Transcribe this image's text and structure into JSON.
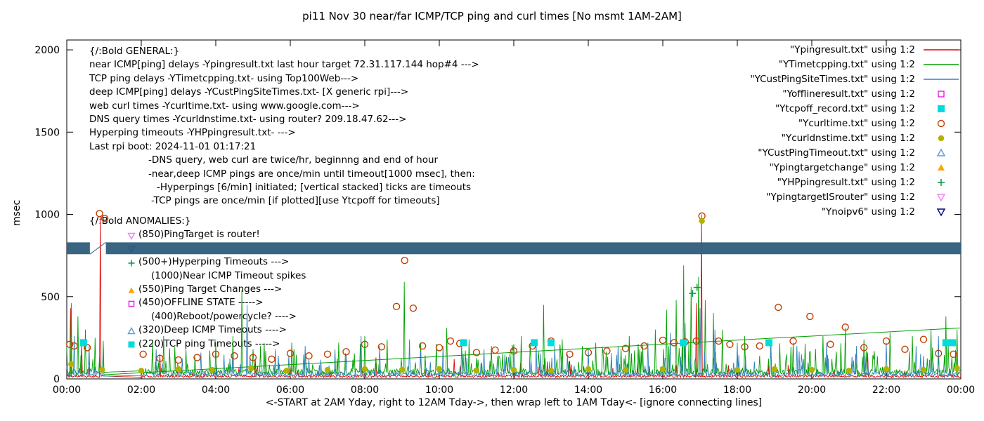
{
  "chart_data": {
    "type": "line",
    "title": "pi11 Nov 30  near/far ICMP/TCP ping and curl times [No msmt 1AM-2AM]",
    "xlabel": "<-START at 2AM Yday, right to 12AM Tday->, then wrap left to 1AM Tday<- [ignore connecting lines]",
    "ylabel": "msec",
    "x_range": [
      0,
      24
    ],
    "ylim": [
      0,
      2000
    ],
    "grid": false,
    "legend_position": "top-right",
    "x_tick_pos": [
      0,
      2,
      4,
      6,
      8,
      10,
      12,
      14,
      16,
      18,
      20,
      22,
      24
    ],
    "x_tick_labels": [
      "00:00",
      "02:00",
      "04:00",
      "06:00",
      "08:00",
      "10:00",
      "12:00",
      "14:00",
      "16:00",
      "18:00",
      "20:00",
      "22:00",
      "00:00"
    ],
    "y_tick_pos": [
      0,
      500,
      1000,
      1500,
      2000
    ],
    "y_tick_labels": [
      "0",
      "500",
      "1000",
      "1500",
      "2000"
    ],
    "no_measurement_gap_hours": [
      1,
      2
    ],
    "noise_series": [
      {
        "name": "Ypingresult.txt",
        "color": "#dd0000",
        "seed": 11,
        "base": 16,
        "amp": 90,
        "spike_prob": 0.05,
        "spikes": [
          [
            0.1,
            430
          ],
          [
            0.4,
            210
          ],
          [
            0.9,
            990
          ],
          [
            2.5,
            150
          ],
          [
            5.05,
            120
          ],
          [
            8.3,
            130
          ],
          [
            10.4,
            120
          ],
          [
            13.5,
            110
          ],
          [
            16.9,
            460
          ],
          [
            17.04,
            1000
          ],
          [
            21.5,
            160
          ]
        ]
      },
      {
        "name": "YTimetcpping.txt",
        "color": "#00a000",
        "seed": 7,
        "base": 40,
        "amp": 180,
        "spike_prob": 0.18,
        "spikes": [
          [
            0.12,
            460
          ],
          [
            0.3,
            380
          ],
          [
            0.5,
            300
          ],
          [
            0.75,
            250
          ],
          [
            2.3,
            220
          ],
          [
            2.6,
            260
          ],
          [
            3.2,
            180
          ],
          [
            4.0,
            220
          ],
          [
            4.45,
            260
          ],
          [
            4.7,
            540
          ],
          [
            5.2,
            200
          ],
          [
            6.1,
            180
          ],
          [
            7.3,
            220
          ],
          [
            8.0,
            260
          ],
          [
            8.6,
            240
          ],
          [
            9.05,
            590
          ],
          [
            9.5,
            220
          ],
          [
            10.2,
            310
          ],
          [
            10.8,
            240
          ],
          [
            11.4,
            200
          ],
          [
            12.2,
            260
          ],
          [
            12.8,
            450
          ],
          [
            13.3,
            240
          ],
          [
            14.2,
            220
          ],
          [
            15.1,
            260
          ],
          [
            15.8,
            300
          ],
          [
            16.1,
            420
          ],
          [
            16.35,
            480
          ],
          [
            16.55,
            690
          ],
          [
            16.75,
            560
          ],
          [
            16.95,
            620
          ],
          [
            17.15,
            480
          ],
          [
            17.35,
            400
          ],
          [
            17.6,
            300
          ],
          [
            18.2,
            260
          ],
          [
            18.9,
            240
          ],
          [
            19.5,
            220
          ],
          [
            20.3,
            260
          ],
          [
            20.9,
            310
          ],
          [
            21.4,
            240
          ],
          [
            22.1,
            280
          ],
          [
            22.7,
            260
          ],
          [
            23.2,
            300
          ],
          [
            23.6,
            380
          ],
          [
            23.9,
            300
          ]
        ]
      },
      {
        "name": "YCustPingSiteTimes.txt",
        "color": "#3182bd",
        "seed": 3,
        "base": 28,
        "amp": 140,
        "spike_prob": 0.12,
        "spikes": [
          [
            0.2,
            260
          ],
          [
            0.6,
            200
          ],
          [
            2.4,
            180
          ],
          [
            3.6,
            160
          ],
          [
            4.85,
            450
          ],
          [
            5.6,
            180
          ],
          [
            6.4,
            200
          ],
          [
            7.2,
            180
          ],
          [
            7.9,
            260
          ],
          [
            8.4,
            200
          ],
          [
            9.2,
            240
          ],
          [
            10.1,
            200
          ],
          [
            10.6,
            230
          ],
          [
            11.2,
            180
          ],
          [
            12.0,
            200
          ],
          [
            12.6,
            220
          ],
          [
            13.1,
            200
          ],
          [
            14.0,
            180
          ],
          [
            14.8,
            200
          ],
          [
            15.6,
            220
          ],
          [
            16.2,
            280
          ],
          [
            16.6,
            340
          ],
          [
            17.0,
            430
          ],
          [
            17.4,
            300
          ],
          [
            18.0,
            220
          ],
          [
            18.9,
            230
          ],
          [
            19.6,
            200
          ],
          [
            20.4,
            220
          ],
          [
            21.2,
            200
          ],
          [
            22.0,
            220
          ],
          [
            22.8,
            200
          ],
          [
            23.4,
            260
          ]
        ]
      }
    ],
    "wrap_line": {
      "name": "wrap-connecting-line",
      "color": "#00a000",
      "from": [
        1.0,
        25
      ],
      "to": [
        24,
        310
      ]
    },
    "band": {
      "name": "Ynoipv6 dense timeout band",
      "color": "#2e5d7c",
      "y": [
        758,
        830
      ],
      "segments": [
        [
          0,
          0.62
        ],
        [
          1.05,
          24
        ]
      ],
      "slash": [
        [
          0.62,
          758
        ],
        [
          1.05,
          830
        ]
      ]
    },
    "point_series": [
      {
        "name": "Ycurltime.txt",
        "marker": "circle_open",
        "color": "#c04000",
        "points": [
          [
            0.08,
            210
          ],
          [
            0.2,
            200
          ],
          [
            0.55,
            190
          ],
          [
            0.88,
            1005
          ],
          [
            1.02,
            975
          ],
          [
            2.05,
            150
          ],
          [
            2.5,
            125
          ],
          [
            3.0,
            115
          ],
          [
            3.5,
            130
          ],
          [
            4.0,
            150
          ],
          [
            4.5,
            140
          ],
          [
            5.0,
            130
          ],
          [
            5.5,
            120
          ],
          [
            6.0,
            155
          ],
          [
            6.5,
            140
          ],
          [
            7.0,
            150
          ],
          [
            7.5,
            165
          ],
          [
            8.0,
            210
          ],
          [
            8.45,
            195
          ],
          [
            8.85,
            440
          ],
          [
            9.07,
            720
          ],
          [
            9.3,
            430
          ],
          [
            9.55,
            200
          ],
          [
            10.0,
            190
          ],
          [
            10.3,
            230
          ],
          [
            10.55,
            215
          ],
          [
            11.0,
            160
          ],
          [
            11.5,
            175
          ],
          [
            12.0,
            170
          ],
          [
            12.5,
            200
          ],
          [
            13.0,
            230
          ],
          [
            13.5,
            150
          ],
          [
            14.0,
            160
          ],
          [
            14.5,
            170
          ],
          [
            15.0,
            185
          ],
          [
            15.5,
            200
          ],
          [
            16.0,
            235
          ],
          [
            16.3,
            220
          ],
          [
            16.6,
            225
          ],
          [
            16.9,
            230
          ],
          [
            17.05,
            990
          ],
          [
            17.5,
            230
          ],
          [
            17.8,
            210
          ],
          [
            18.2,
            195
          ],
          [
            18.6,
            200
          ],
          [
            19.1,
            435
          ],
          [
            19.5,
            230
          ],
          [
            19.95,
            380
          ],
          [
            20.5,
            210
          ],
          [
            20.9,
            315
          ],
          [
            21.4,
            190
          ],
          [
            22.0,
            230
          ],
          [
            22.5,
            180
          ],
          [
            23.0,
            240
          ],
          [
            23.4,
            155
          ],
          [
            23.8,
            150
          ]
        ]
      },
      {
        "name": "Ycurldnstime.txt",
        "marker": "circle_fill",
        "color": "#b2b200",
        "points": [
          [
            0.12,
            90
          ],
          [
            0.95,
            55
          ],
          [
            2.0,
            50
          ],
          [
            3.0,
            60
          ],
          [
            3.9,
            55
          ],
          [
            4.95,
            65
          ],
          [
            5.9,
            50
          ],
          [
            7.0,
            55
          ],
          [
            8.0,
            60
          ],
          [
            9.0,
            55
          ],
          [
            10.0,
            60
          ],
          [
            11.0,
            50
          ],
          [
            12.0,
            55
          ],
          [
            13.0,
            50
          ],
          [
            14.0,
            60
          ],
          [
            15.0,
            55
          ],
          [
            16.0,
            60
          ],
          [
            17.05,
            960
          ],
          [
            18.0,
            55
          ],
          [
            19.0,
            60
          ],
          [
            20.0,
            55
          ],
          [
            21.0,
            50
          ],
          [
            22.0,
            60
          ],
          [
            23.0,
            55
          ],
          [
            23.9,
            65
          ]
        ]
      },
      {
        "name": "Ytcpoff_record.txt",
        "marker": "square_fill",
        "color": "#00dcdc",
        "points": [
          [
            0.45,
            220
          ],
          [
            10.65,
            220
          ],
          [
            12.55,
            220
          ],
          [
            13.0,
            220
          ],
          [
            16.55,
            220
          ],
          [
            18.85,
            220
          ],
          [
            23.6,
            220
          ],
          [
            23.78,
            220
          ]
        ]
      },
      {
        "name": "YHPpingresult.txt",
        "marker": "plus",
        "color": "#009940",
        "points": [
          [
            16.8,
            520
          ],
          [
            16.92,
            556
          ]
        ]
      }
    ],
    "legend": [
      {
        "label": "\"Ypingresult.txt\" using 1:2",
        "glyph": "line",
        "color": "#dd0000"
      },
      {
        "label": "\"YTimetcpping.txt\" using 1:2",
        "glyph": "line",
        "color": "#00a000"
      },
      {
        "label": "\"YCustPingSiteTimes.txt\" using 1:2",
        "glyph": "line",
        "color": "#3182bd"
      },
      {
        "label": "\"Yofflineresult.txt\" using 1:2",
        "glyph": "square_open",
        "color": "#e619e6"
      },
      {
        "label": "\"Ytcpoff_record.txt\" using 1:2",
        "glyph": "square_fill",
        "color": "#00dcdc"
      },
      {
        "label": "\"Ycurltime.txt\" using 1:2",
        "glyph": "circle_open",
        "color": "#c04000"
      },
      {
        "label": "\"Ycurldnstime.txt\" using 1:2",
        "glyph": "circle_fill",
        "color": "#b2b200"
      },
      {
        "label": "\"YCustPingTimeout.txt\" using 1:2",
        "glyph": "tri_open",
        "color": "#5b9bd5"
      },
      {
        "label": "\"Ypingtargetchange\" using 1:2",
        "glyph": "tri_fill",
        "color": "#ffa500"
      },
      {
        "label": "\"YHPpingresult.txt\" using 1:2",
        "glyph": "plus",
        "color": "#009940"
      },
      {
        "label": "\"YpingtargetISrouter\" using 1:2",
        "glyph": "tridown_open",
        "color": "#ee82ee"
      },
      {
        "label": "\"Ynoipv6\" using 1:2",
        "glyph": "tridown_open",
        "color": "#000080"
      }
    ],
    "annotations": {
      "general": [
        {
          "text": "{/:Bold GENERAL:}",
          "indent": 0
        },
        {
          "text": "near ICMP[ping] delays -Ypingresult.txt last hour target 72.31.117.144 hop#4 --->",
          "indent": 0
        },
        {
          "text": "TCP ping delays -YTimetcpping.txt- using Top100Web--->",
          "indent": 0
        },
        {
          "text": "deep ICMP[ping] delays -YCustPingSiteTimes.txt- [X generic rpi]--->",
          "indent": 0
        },
        {
          "text": "web curl times -Ycurltime.txt- using www.google.com--->",
          "indent": 0
        },
        {
          "text": "DNS query times -Ycurldnstime.txt- using router? 209.18.47.62--->",
          "indent": 0
        },
        {
          "text": "Hyperping timeouts -YHPpingresult.txt- --->",
          "indent": 0
        },
        {
          "text": "Last rpi boot: 2024-11-01 01:17:21",
          "indent": 0
        },
        {
          "text": "-DNS query, web curl are twice/hr, beginnng and end of hour",
          "indent": 84
        },
        {
          "text": "-near,deep ICMP pings are once/min until timeout[1000 msec], then:",
          "indent": 84
        },
        {
          "text": "-Hyperpings [6/min] initiated; [vertical stacked] ticks are timeouts",
          "indent": 96
        },
        {
          "text": "-TCP pings are once/min [if plotted][use Ytcpoff for timeouts]",
          "indent": 88
        }
      ],
      "anomalies": [
        {
          "text": "{/:Bold ANOMALIES:}",
          "indent": 0,
          "glyph": null,
          "color": null
        },
        {
          "text": "(850)PingTarget is router!",
          "indent": 70,
          "glyph": "tridown_open",
          "color": "#ee82ee"
        },
        {
          "text": "",
          "indent": 70,
          "glyph": "tridown_open",
          "color": "#000080"
        },
        {
          "text": "(500+)Hyperping Timeouts --->",
          "indent": 70,
          "glyph": "plus",
          "color": "#009940"
        },
        {
          "text": "(1000)Near ICMP Timeout spikes",
          "indent": 88,
          "glyph": null,
          "color": null
        },
        {
          "text": "(550)Ping Target Changes --->",
          "indent": 70,
          "glyph": "tri_fill",
          "color": "#ffa500"
        },
        {
          "text": "(450)OFFLINE STATE ----->",
          "indent": 70,
          "glyph": "square_open",
          "color": "#e619e6"
        },
        {
          "text": "(400)Reboot/powercycle? ---->",
          "indent": 88,
          "glyph": null,
          "color": null
        },
        {
          "text": "(320)Deep ICMP Timeouts ---->",
          "indent": 70,
          "glyph": "tri_open",
          "color": "#5b9bd5"
        },
        {
          "text": "(220)TCP ping Timeouts ----->",
          "indent": 70,
          "glyph": "square_fill",
          "color": "#00dcdc"
        }
      ]
    }
  }
}
